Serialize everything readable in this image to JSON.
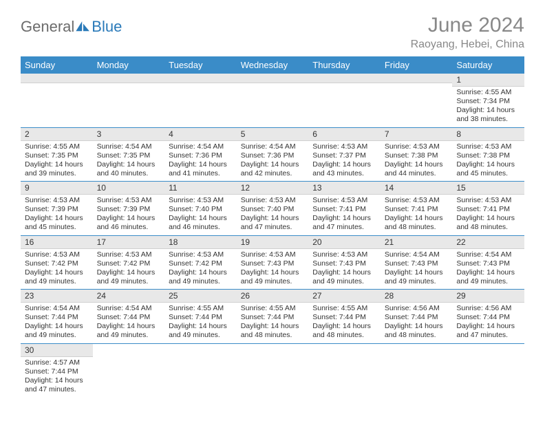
{
  "logo": {
    "text1": "General",
    "text2": "Blue"
  },
  "title": "June 2024",
  "location": "Raoyang, Hebei, China",
  "header_color": "#3a8cc8",
  "days": [
    "Sunday",
    "Monday",
    "Tuesday",
    "Wednesday",
    "Thursday",
    "Friday",
    "Saturday"
  ],
  "cells": {
    "d1": {
      "n": "1",
      "sr": "Sunrise: 4:55 AM",
      "ss": "Sunset: 7:34 PM",
      "dl1": "Daylight: 14 hours",
      "dl2": "and 38 minutes."
    },
    "d2": {
      "n": "2",
      "sr": "Sunrise: 4:55 AM",
      "ss": "Sunset: 7:35 PM",
      "dl1": "Daylight: 14 hours",
      "dl2": "and 39 minutes."
    },
    "d3": {
      "n": "3",
      "sr": "Sunrise: 4:54 AM",
      "ss": "Sunset: 7:35 PM",
      "dl1": "Daylight: 14 hours",
      "dl2": "and 40 minutes."
    },
    "d4": {
      "n": "4",
      "sr": "Sunrise: 4:54 AM",
      "ss": "Sunset: 7:36 PM",
      "dl1": "Daylight: 14 hours",
      "dl2": "and 41 minutes."
    },
    "d5": {
      "n": "5",
      "sr": "Sunrise: 4:54 AM",
      "ss": "Sunset: 7:36 PM",
      "dl1": "Daylight: 14 hours",
      "dl2": "and 42 minutes."
    },
    "d6": {
      "n": "6",
      "sr": "Sunrise: 4:53 AM",
      "ss": "Sunset: 7:37 PM",
      "dl1": "Daylight: 14 hours",
      "dl2": "and 43 minutes."
    },
    "d7": {
      "n": "7",
      "sr": "Sunrise: 4:53 AM",
      "ss": "Sunset: 7:38 PM",
      "dl1": "Daylight: 14 hours",
      "dl2": "and 44 minutes."
    },
    "d8": {
      "n": "8",
      "sr": "Sunrise: 4:53 AM",
      "ss": "Sunset: 7:38 PM",
      "dl1": "Daylight: 14 hours",
      "dl2": "and 45 minutes."
    },
    "d9": {
      "n": "9",
      "sr": "Sunrise: 4:53 AM",
      "ss": "Sunset: 7:39 PM",
      "dl1": "Daylight: 14 hours",
      "dl2": "and 45 minutes."
    },
    "d10": {
      "n": "10",
      "sr": "Sunrise: 4:53 AM",
      "ss": "Sunset: 7:39 PM",
      "dl1": "Daylight: 14 hours",
      "dl2": "and 46 minutes."
    },
    "d11": {
      "n": "11",
      "sr": "Sunrise: 4:53 AM",
      "ss": "Sunset: 7:40 PM",
      "dl1": "Daylight: 14 hours",
      "dl2": "and 46 minutes."
    },
    "d12": {
      "n": "12",
      "sr": "Sunrise: 4:53 AM",
      "ss": "Sunset: 7:40 PM",
      "dl1": "Daylight: 14 hours",
      "dl2": "and 47 minutes."
    },
    "d13": {
      "n": "13",
      "sr": "Sunrise: 4:53 AM",
      "ss": "Sunset: 7:41 PM",
      "dl1": "Daylight: 14 hours",
      "dl2": "and 47 minutes."
    },
    "d14": {
      "n": "14",
      "sr": "Sunrise: 4:53 AM",
      "ss": "Sunset: 7:41 PM",
      "dl1": "Daylight: 14 hours",
      "dl2": "and 48 minutes."
    },
    "d15": {
      "n": "15",
      "sr": "Sunrise: 4:53 AM",
      "ss": "Sunset: 7:41 PM",
      "dl1": "Daylight: 14 hours",
      "dl2": "and 48 minutes."
    },
    "d16": {
      "n": "16",
      "sr": "Sunrise: 4:53 AM",
      "ss": "Sunset: 7:42 PM",
      "dl1": "Daylight: 14 hours",
      "dl2": "and 49 minutes."
    },
    "d17": {
      "n": "17",
      "sr": "Sunrise: 4:53 AM",
      "ss": "Sunset: 7:42 PM",
      "dl1": "Daylight: 14 hours",
      "dl2": "and 49 minutes."
    },
    "d18": {
      "n": "18",
      "sr": "Sunrise: 4:53 AM",
      "ss": "Sunset: 7:42 PM",
      "dl1": "Daylight: 14 hours",
      "dl2": "and 49 minutes."
    },
    "d19": {
      "n": "19",
      "sr": "Sunrise: 4:53 AM",
      "ss": "Sunset: 7:43 PM",
      "dl1": "Daylight: 14 hours",
      "dl2": "and 49 minutes."
    },
    "d20": {
      "n": "20",
      "sr": "Sunrise: 4:53 AM",
      "ss": "Sunset: 7:43 PM",
      "dl1": "Daylight: 14 hours",
      "dl2": "and 49 minutes."
    },
    "d21": {
      "n": "21",
      "sr": "Sunrise: 4:54 AM",
      "ss": "Sunset: 7:43 PM",
      "dl1": "Daylight: 14 hours",
      "dl2": "and 49 minutes."
    },
    "d22": {
      "n": "22",
      "sr": "Sunrise: 4:54 AM",
      "ss": "Sunset: 7:43 PM",
      "dl1": "Daylight: 14 hours",
      "dl2": "and 49 minutes."
    },
    "d23": {
      "n": "23",
      "sr": "Sunrise: 4:54 AM",
      "ss": "Sunset: 7:44 PM",
      "dl1": "Daylight: 14 hours",
      "dl2": "and 49 minutes."
    },
    "d24": {
      "n": "24",
      "sr": "Sunrise: 4:54 AM",
      "ss": "Sunset: 7:44 PM",
      "dl1": "Daylight: 14 hours",
      "dl2": "and 49 minutes."
    },
    "d25": {
      "n": "25",
      "sr": "Sunrise: 4:55 AM",
      "ss": "Sunset: 7:44 PM",
      "dl1": "Daylight: 14 hours",
      "dl2": "and 49 minutes."
    },
    "d26": {
      "n": "26",
      "sr": "Sunrise: 4:55 AM",
      "ss": "Sunset: 7:44 PM",
      "dl1": "Daylight: 14 hours",
      "dl2": "and 48 minutes."
    },
    "d27": {
      "n": "27",
      "sr": "Sunrise: 4:55 AM",
      "ss": "Sunset: 7:44 PM",
      "dl1": "Daylight: 14 hours",
      "dl2": "and 48 minutes."
    },
    "d28": {
      "n": "28",
      "sr": "Sunrise: 4:56 AM",
      "ss": "Sunset: 7:44 PM",
      "dl1": "Daylight: 14 hours",
      "dl2": "and 48 minutes."
    },
    "d29": {
      "n": "29",
      "sr": "Sunrise: 4:56 AM",
      "ss": "Sunset: 7:44 PM",
      "dl1": "Daylight: 14 hours",
      "dl2": "and 47 minutes."
    },
    "d30": {
      "n": "30",
      "sr": "Sunrise: 4:57 AM",
      "ss": "Sunset: 7:44 PM",
      "dl1": "Daylight: 14 hours",
      "dl2": "and 47 minutes."
    }
  }
}
